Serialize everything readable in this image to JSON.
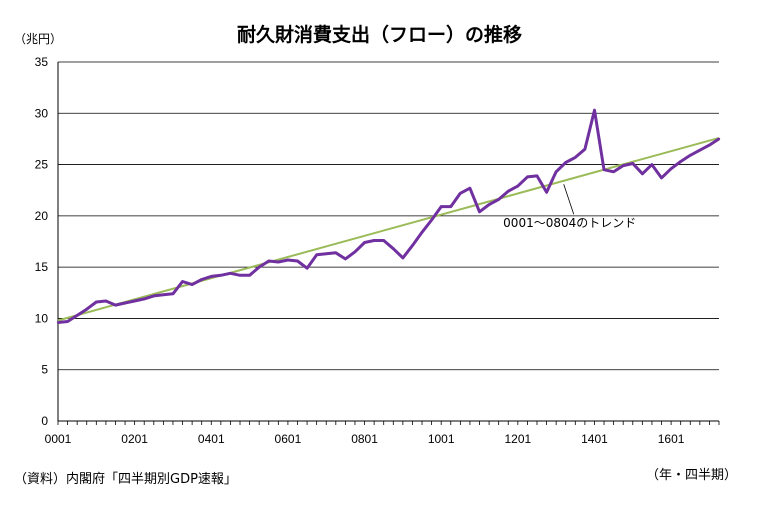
{
  "chart_data": {
    "type": "line",
    "title": "耐久財消費支出（フロー）の推移",
    "ylabel": "（兆円）",
    "xlabel": "（年・四半期）",
    "source": "（資料）内閣府「四半期別GDP速報」",
    "ylim": [
      0,
      35
    ],
    "yticks": [
      0,
      5,
      10,
      15,
      20,
      25,
      30,
      35
    ],
    "xticks": [
      "0001",
      "0201",
      "0401",
      "0601",
      "0801",
      "1001",
      "1201",
      "1401",
      "1601"
    ],
    "xtick_index": [
      0,
      8,
      16,
      24,
      32,
      40,
      48,
      56,
      64
    ],
    "grid": true,
    "colors": {
      "series": "#7030a0",
      "trend": "#9bbb59",
      "grid": "#000000"
    },
    "series": [
      {
        "values": [
          9.6,
          9.7,
          10.3,
          10.9,
          11.6,
          11.7,
          11.3,
          11.5,
          11.7,
          11.9,
          12.2,
          12.3,
          12.4,
          13.6,
          13.3,
          13.8,
          14.1,
          14.2,
          14.4,
          14.2,
          14.2,
          15.0,
          15.6,
          15.5,
          15.7,
          15.6,
          14.9,
          16.2,
          16.3,
          16.4,
          15.8,
          16.5,
          17.4,
          17.6,
          17.6,
          16.8,
          15.9,
          17.1,
          18.4,
          19.6,
          20.9,
          20.9,
          22.2,
          22.7,
          20.4,
          21.1,
          21.6,
          22.4,
          22.9,
          23.8,
          23.9,
          22.3,
          24.3,
          25.2,
          25.7,
          26.5,
          30.3,
          24.5,
          24.3,
          24.9,
          25.1,
          24.1,
          25.0,
          23.7,
          24.6,
          25.3,
          25.9,
          26.4,
          26.9,
          27.5
        ]
      }
    ],
    "trend": {
      "label": "0001～0804のトレンド",
      "start": 9.8,
      "end": 27.6
    }
  }
}
